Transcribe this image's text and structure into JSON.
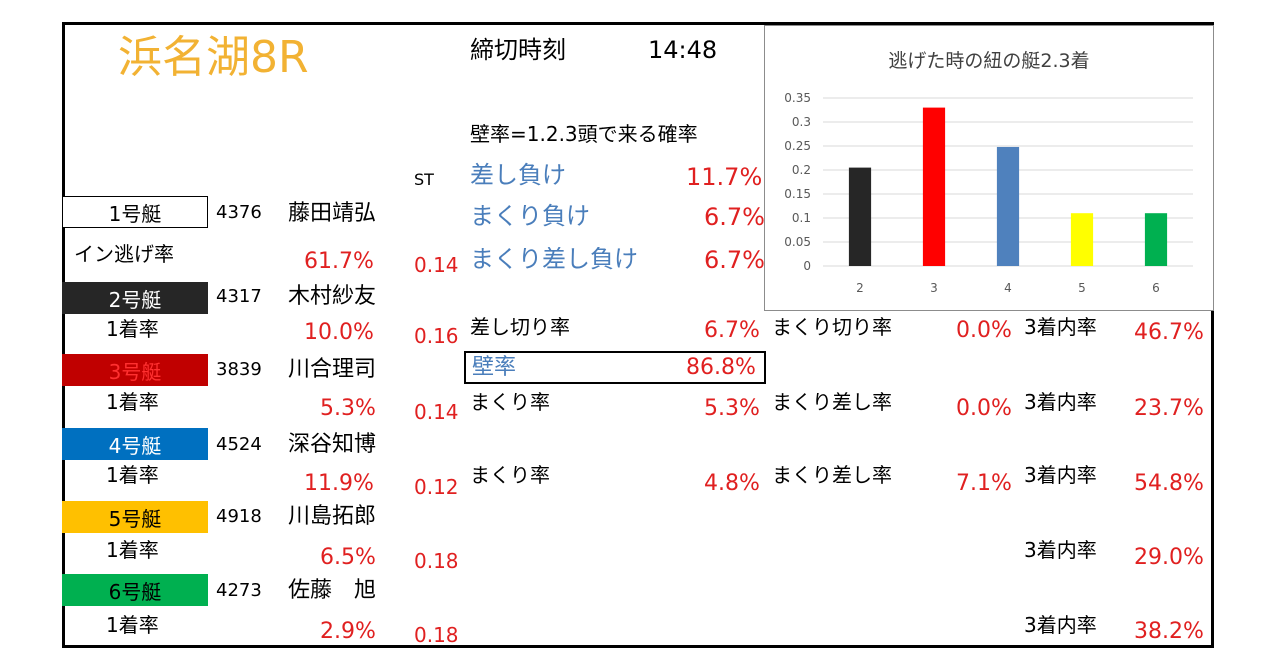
{
  "header": {
    "venue": "浜名湖8R",
    "deadline_label": "締切時刻",
    "deadline_time": "14:48",
    "wall_desc": "壁率=1.2.3頭で来る確率",
    "st_label": "ST"
  },
  "boats": [
    {
      "label": "1号艇",
      "reg": "4376",
      "name": "藤田靖弘",
      "rate_label": "イン逃げ率",
      "rate": "61.7%",
      "st": "0.14",
      "bg": "#ffffff",
      "fg": "#000000"
    },
    {
      "label": "2号艇",
      "reg": "4317",
      "name": "木村紗友",
      "rate_label": "1着率",
      "rate": "10.0%",
      "st": "0.16",
      "bg": "#262626",
      "fg": "#ffffff"
    },
    {
      "label": "3号艇",
      "reg": "3839",
      "name": "川合理司",
      "rate_label": "1着率",
      "rate": "5.3%",
      "st": "0.14",
      "bg": "#c00000",
      "fg": "#e02020"
    },
    {
      "label": "4号艇",
      "reg": "4524",
      "name": "深谷知博",
      "rate_label": "1着率",
      "rate": "11.9%",
      "st": "0.12",
      "bg": "#0070c0",
      "fg": "#ffffff"
    },
    {
      "label": "5号艇",
      "reg": "4918",
      "name": "川島拓郎",
      "rate_label": "1着率",
      "rate": "6.5%",
      "st": "0.18",
      "bg": "#ffc000",
      "fg": "#000000"
    },
    {
      "label": "6号艇",
      "reg": "4273",
      "name": "佐藤　旭",
      "rate_label": "1着率",
      "rate": "2.9%",
      "st": "0.18",
      "bg": "#00b050",
      "fg": "#000000"
    }
  ],
  "stats": {
    "sashi_make": {
      "label": "差し負け",
      "value": "11.7%"
    },
    "makuri_make": {
      "label": "まくり負け",
      "value": "6.7%"
    },
    "makuri_sashi_make": {
      "label": "まくり差し負け",
      "value": "6.7%"
    },
    "sashikiri": {
      "label": "差し切り率",
      "value": "6.7%"
    },
    "makurikiri": {
      "label": "まくり切り率",
      "value": "0.0%"
    },
    "wall": {
      "label": "壁率",
      "value": "86.8%"
    },
    "row3_makuri": {
      "label": "まくり率",
      "value": "5.3%"
    },
    "row3_makurisashi": {
      "label": "まくり差し率",
      "value": "0.0%"
    },
    "row4_makuri": {
      "label": "まくり率",
      "value": "4.8%"
    },
    "row4_makurisashi": {
      "label": "まくり差し率",
      "value": "7.1%"
    },
    "top3_label": "3着内率",
    "top3": [
      "46.7%",
      "23.7%",
      "54.8%",
      "29.0%",
      "38.2%"
    ]
  },
  "chart_data": {
    "type": "bar",
    "title": "逃げた時の紐の艇2.3着",
    "categories": [
      "2",
      "3",
      "4",
      "5",
      "6"
    ],
    "values": [
      0.205,
      0.33,
      0.248,
      0.11,
      0.11
    ],
    "colors": [
      "#262626",
      "#ff0000",
      "#4f81bd",
      "#ffff00",
      "#00b050"
    ],
    "ylim": [
      0,
      0.35
    ],
    "yticks": [
      "0",
      "0.05",
      "0.1",
      "0.15",
      "0.2",
      "0.25",
      "0.3",
      "0.35"
    ],
    "grid": true,
    "xlabel": "",
    "ylabel": ""
  }
}
